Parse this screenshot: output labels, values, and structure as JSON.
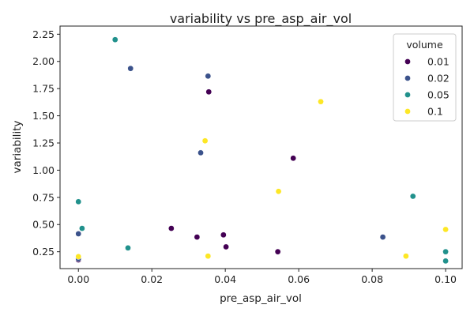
{
  "chart_data": {
    "type": "scatter",
    "title": "variability vs pre_asp_air_vol",
    "xlabel": "pre_asp_air_vol",
    "ylabel": "variability",
    "xlim": [
      -0.005,
      0.1045
    ],
    "ylim": [
      0.095,
      2.325
    ],
    "x_ticks": [
      0.0,
      0.02,
      0.04,
      0.06,
      0.08,
      0.1
    ],
    "x_tick_labels": [
      "0.00",
      "0.02",
      "0.04",
      "0.06",
      "0.08",
      "0.10"
    ],
    "y_ticks": [
      0.25,
      0.5,
      0.75,
      1.0,
      1.25,
      1.5,
      1.75,
      2.0,
      2.25
    ],
    "y_tick_labels": [
      "0.25",
      "0.50",
      "0.75",
      "1.00",
      "1.25",
      "1.50",
      "1.75",
      "2.00",
      "2.25"
    ],
    "grid": false,
    "legend": {
      "title": "volume",
      "placement": "top-right",
      "entries": [
        {
          "label": "0.01",
          "color": "#440154"
        },
        {
          "label": "0.02",
          "color": "#3b528b"
        },
        {
          "label": "0.05",
          "color": "#21918c"
        },
        {
          "label": "0.1",
          "color": "#fde725"
        }
      ]
    },
    "series": [
      {
        "name": "0.01",
        "color": "#440154",
        "points": [
          {
            "x": 0.0355,
            "y": 1.72
          },
          {
            "x": 0.0585,
            "y": 1.11
          },
          {
            "x": 0.0253,
            "y": 0.465
          },
          {
            "x": 0.0323,
            "y": 0.385
          },
          {
            "x": 0.0395,
            "y": 0.405
          },
          {
            "x": 0.0402,
            "y": 0.295
          },
          {
            "x": 0.0543,
            "y": 0.25
          },
          {
            "x": 0.0,
            "y": 0.175
          }
        ]
      },
      {
        "name": "0.02",
        "color": "#3b528b",
        "points": [
          {
            "x": 0.0142,
            "y": 1.935
          },
          {
            "x": 0.0353,
            "y": 1.865
          },
          {
            "x": 0.0333,
            "y": 1.16
          },
          {
            "x": 0.0,
            "y": 0.415
          },
          {
            "x": 0.0829,
            "y": 0.385
          },
          {
            "x": 0.0,
            "y": 0.185
          }
        ]
      },
      {
        "name": "0.05",
        "color": "#21918c",
        "points": [
          {
            "x": 0.01,
            "y": 2.2
          },
          {
            "x": 0.0,
            "y": 0.71
          },
          {
            "x": 0.0911,
            "y": 0.76
          },
          {
            "x": 0.001,
            "y": 0.465
          },
          {
            "x": 0.0135,
            "y": 0.285
          },
          {
            "x": 0.1,
            "y": 0.25
          },
          {
            "x": 0.1,
            "y": 0.165
          }
        ]
      },
      {
        "name": "0.1",
        "color": "#fde725",
        "points": [
          {
            "x": 0.066,
            "y": 1.63
          },
          {
            "x": 0.0345,
            "y": 1.27
          },
          {
            "x": 0.0545,
            "y": 0.805
          },
          {
            "x": 0.1,
            "y": 0.455
          },
          {
            "x": 0.0353,
            "y": 0.21
          },
          {
            "x": 0.0892,
            "y": 0.21
          },
          {
            "x": 0.0,
            "y": 0.205
          }
        ]
      }
    ]
  }
}
